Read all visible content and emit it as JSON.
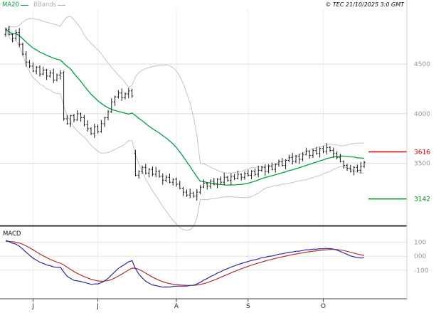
{
  "header": {
    "legend": [
      {
        "label": "MA20",
        "color": "#00a33e"
      },
      {
        "label": "BBands",
        "color": "#b0b0b0"
      }
    ],
    "copyright": "© TEC 21/10/2025 3:0 GMT"
  },
  "chart_data": {
    "type": "candlestick",
    "title": "",
    "description": "Daily OHLC bar chart with MA20 and Bollinger Bands overlays, resistance/support levels and MACD sub-panel",
    "x_axis": {
      "tick_labels": [
        "J",
        "J",
        "A",
        "S",
        "O"
      ],
      "tick_candle_indices": [
        8,
        27,
        50,
        71,
        93
      ]
    },
    "price_axis": {
      "tick_labels": [
        "4500",
        "4000",
        "3500"
      ],
      "tick_values": [
        4500,
        4000,
        3500
      ],
      "range_top": 5060,
      "range_bottom": 2910
    },
    "candles": {
      "first_open": 4800,
      "gap_opens": {
        "38": 3600
      },
      "wick_up_pattern": [
        18,
        35,
        12,
        28,
        45,
        15,
        30,
        22,
        38,
        10
      ],
      "wick_down_pattern": [
        25,
        12,
        40,
        18,
        30,
        15,
        45,
        20,
        10,
        33
      ],
      "closes": [
        4850,
        4800,
        4760,
        4820,
        4700,
        4600,
        4520,
        4480,
        4430,
        4470,
        4400,
        4440,
        4380,
        4410,
        4340,
        4390,
        4410,
        3950,
        3900,
        3980,
        3940,
        4000,
        3960,
        3890,
        3850,
        3800,
        3870,
        3820,
        3900,
        3960,
        4020,
        4120,
        4170,
        4210,
        4160,
        4200,
        4230,
        4180,
        3380,
        3420,
        3460,
        3400,
        3440,
        3390,
        3420,
        3370,
        3330,
        3360,
        3310,
        3340,
        3290,
        3250,
        3210,
        3180,
        3200,
        3170,
        3210,
        3260,
        3300,
        3270,
        3320,
        3290,
        3340,
        3310,
        3360,
        3330,
        3370,
        3350,
        3390,
        3360,
        3400,
        3380,
        3420,
        3390,
        3430,
        3460,
        3420,
        3470,
        3440,
        3490,
        3520,
        3480,
        3530,
        3560,
        3520,
        3570,
        3540,
        3590,
        3620,
        3580,
        3630,
        3600,
        3650,
        3620,
        3660,
        3630,
        3600,
        3560,
        3520,
        3480,
        3450,
        3420,
        3460,
        3430,
        3470,
        3510
      ]
    },
    "levels": [
      {
        "name": "resistance",
        "label": "3616",
        "value": 3616,
        "color": "#cc0000"
      },
      {
        "name": "support",
        "label": "3142",
        "value": 3142,
        "color": "#008f1f"
      }
    ],
    "overlays": {
      "ma20": {
        "label": "MA20",
        "period": 20,
        "color": "#00a33e"
      },
      "bbands": {
        "label": "BBands",
        "period": 20,
        "stddev_mult": 2,
        "color": "#c4c4c4"
      }
    },
    "macd_panel": {
      "label": "MACD",
      "fast_period": 12,
      "slow_period": 26,
      "signal_period": 9,
      "macd_color": "#2b2b9b",
      "signal_color": "#b03232",
      "seed_offsets": {
        "fast": -40,
        "slow": -160,
        "signal": -15
      },
      "axis": {
        "tick_labels": [
          "100",
          "000",
          "-100"
        ],
        "tick_values": [
          100,
          0,
          -100
        ],
        "range_top": 200,
        "range_bottom": -300
      }
    }
  }
}
